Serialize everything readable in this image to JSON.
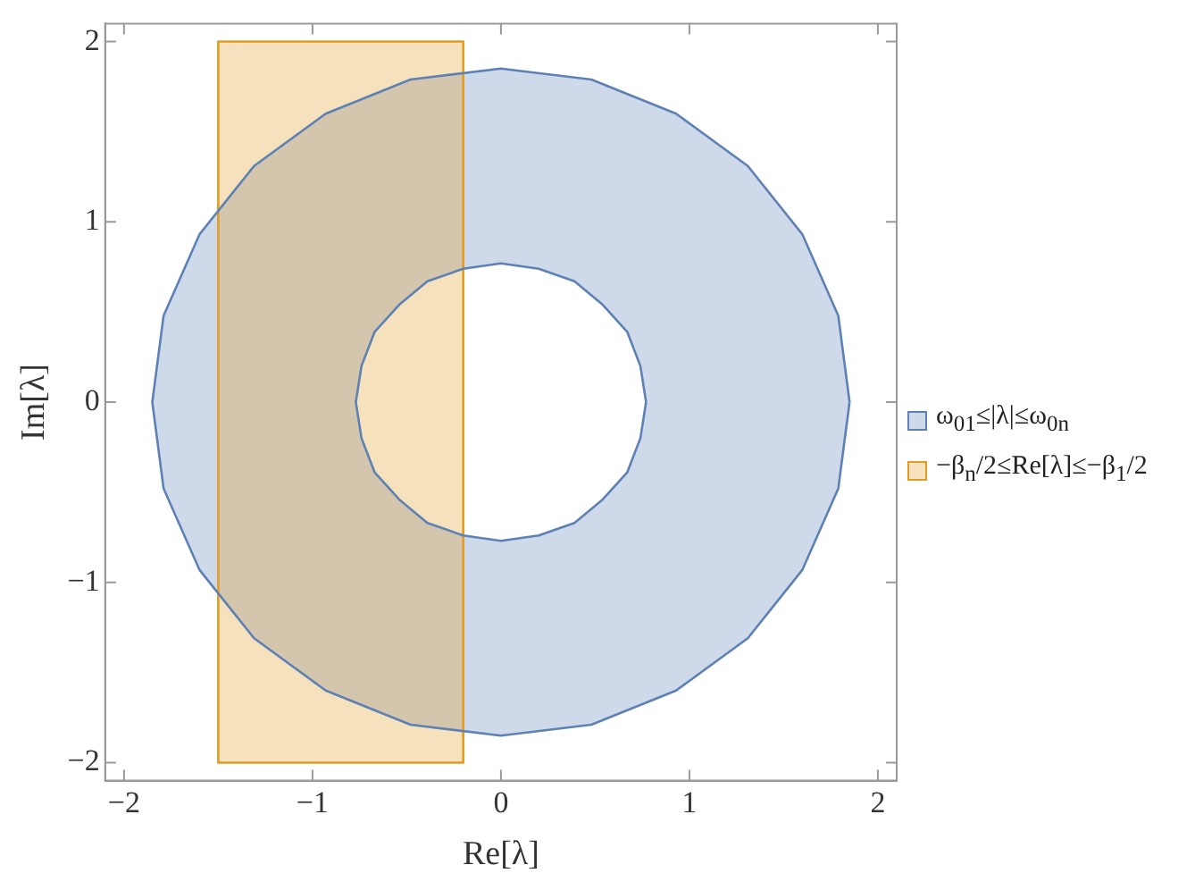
{
  "chart_data": {
    "type": "area",
    "xlabel": "Re[λ]",
    "ylabel": "Im[λ]",
    "xlim": [
      -2.1,
      2.1
    ],
    "ylim": [
      -2.1,
      2.1
    ],
    "xticks": [
      {
        "value": -2,
        "label": "−2"
      },
      {
        "value": -1,
        "label": "−1"
      },
      0,
      1,
      2
    ],
    "yticks": [
      {
        "value": -2,
        "label": "−2"
      },
      {
        "value": -1,
        "label": "−1"
      },
      0,
      1,
      2
    ],
    "grid": false,
    "legend": "right",
    "marker": "none",
    "line_style": "solid",
    "series": [
      {
        "name": "ω$_{01}$≤|λ|≤ω$_{0n}$",
        "color": "#5e81b5",
        "x": [
          1.85,
          1.79,
          1.6,
          1.31,
          0.93,
          0.48,
          0,
          -0.48,
          -0.93,
          -1.31,
          -1.6,
          -1.79,
          -1.85,
          -1.79,
          -1.6,
          -1.31,
          -0.93,
          -0.48,
          0,
          0.48,
          0.93,
          1.31,
          1.6,
          1.79,
          1.85,
          null,
          0.77,
          0.74,
          0.67,
          0.54,
          0.39,
          0.2,
          0,
          -0.2,
          -0.39,
          -0.54,
          -0.67,
          -0.74,
          -0.77,
          -0.74,
          -0.67,
          -0.54,
          -0.39,
          -0.2,
          0,
          0.2,
          0.39,
          0.54,
          0.67,
          0.74,
          0.77
        ],
        "values": [
          0,
          0.48,
          0.93,
          1.31,
          1.6,
          1.79,
          1.85,
          1.79,
          1.6,
          1.31,
          0.93,
          0.48,
          0,
          -0.48,
          -0.93,
          -1.31,
          -1.6,
          -1.79,
          -1.85,
          -1.79,
          -1.6,
          -1.31,
          -0.93,
          -0.48,
          0,
          null,
          0,
          0.2,
          0.39,
          0.54,
          0.67,
          0.74,
          0.77,
          0.74,
          0.67,
          0.54,
          0.39,
          0.2,
          0,
          -0.2,
          -0.39,
          -0.54,
          -0.67,
          -0.74,
          -0.77,
          -0.74,
          -0.67,
          -0.54,
          -0.39,
          -0.2,
          0
        ]
      },
      {
        "name": "−β$_{n}$/2≤Re[λ]≤−β$_{1}$/2",
        "color": "#e19c24",
        "x": [
          -1.5,
          -0.2,
          -0.2,
          -1.5,
          -1.5
        ],
        "values": [
          -2,
          -2,
          2,
          2,
          -2
        ]
      }
    ]
  }
}
